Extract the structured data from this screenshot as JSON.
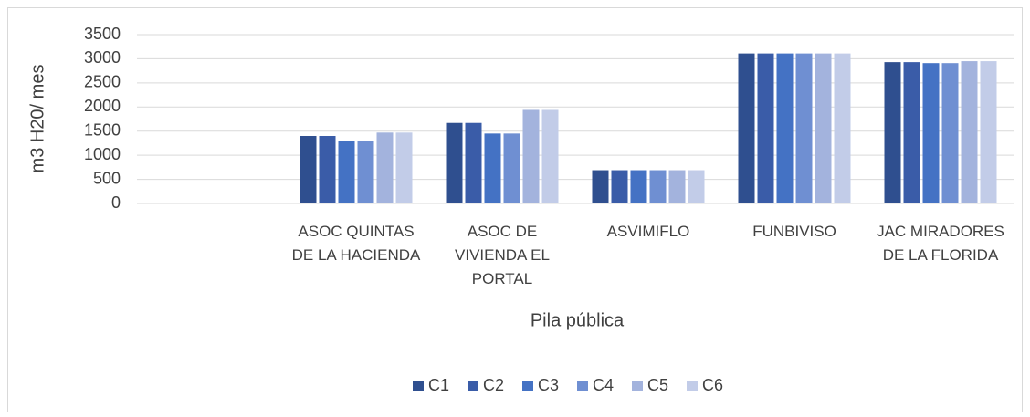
{
  "chart_data": {
    "type": "bar",
    "y_label": "m3 H20/ mes",
    "x_label": "Pila pública",
    "categories": [
      null,
      "ASOC QUINTAS DE LA HACIENDA",
      "ASOC DE VIVIENDA EL PORTAL",
      "ASVIMIFLO",
      "FUNBIVISO",
      "JAC MIRADORES DE LA FLORIDA"
    ],
    "series": [
      {
        "name": "C1",
        "color": "#2f4f8f",
        "values": [
          null,
          1400,
          1670,
          690,
          3110,
          2930
        ]
      },
      {
        "name": "C2",
        "color": "#3a5ca8",
        "values": [
          null,
          1400,
          1670,
          690,
          3110,
          2930
        ]
      },
      {
        "name": "C3",
        "color": "#4472c4",
        "values": [
          null,
          1290,
          1450,
          690,
          3110,
          2910
        ]
      },
      {
        "name": "C4",
        "color": "#6f8fd2",
        "values": [
          null,
          1290,
          1450,
          690,
          3110,
          2910
        ]
      },
      {
        "name": "C5",
        "color": "#a3b3dd",
        "values": [
          null,
          1470,
          1940,
          690,
          3110,
          2950
        ]
      },
      {
        "name": "C6",
        "color": "#c2cce8",
        "values": [
          null,
          1470,
          1940,
          690,
          3110,
          2950
        ]
      }
    ],
    "ylim": [
      0,
      3500
    ],
    "yticks": [
      0,
      500,
      1000,
      1500,
      2000,
      2500,
      3000,
      3500
    ],
    "grid": true,
    "legend": "bottom"
  }
}
